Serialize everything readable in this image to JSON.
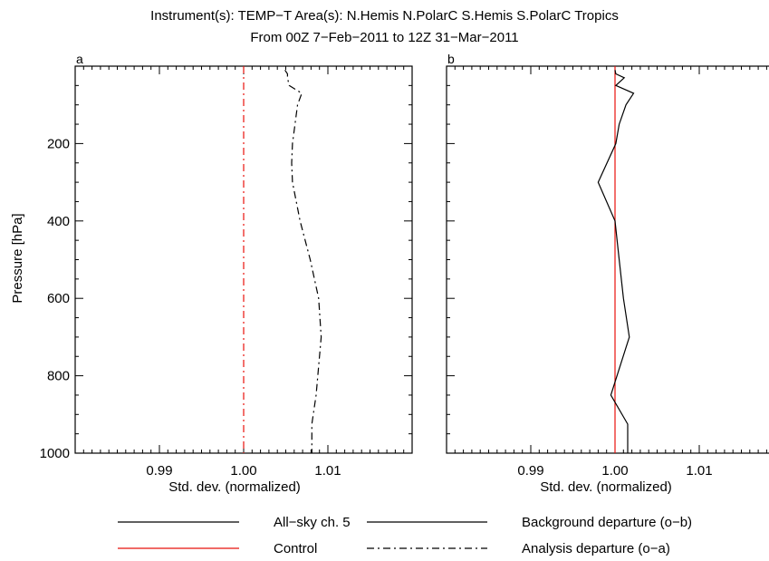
{
  "header": {
    "title_line1": "Instrument(s): TEMP−T     Area(s):  N.Hemis N.PolarC S.Hemis S.PolarC Tropics",
    "title_line2": "From 00Z  7−Feb−2011 to 12Z 31−Mar−2011"
  },
  "colors": {
    "experiment": "#000000",
    "control": "#e8120c",
    "axes": "#000000"
  },
  "chart_data": [
    {
      "type": "line",
      "panel_label": "a",
      "xlabel": "Std. dev. (normalized)",
      "ylabel": "Pressure [hPa]",
      "xlim": [
        0.98,
        1.02
      ],
      "ylim": [
        1000,
        0
      ],
      "y_inverted": true,
      "x_ticks": [
        0.99,
        1.0,
        1.01
      ],
      "x_tick_labels": [
        "0.99",
        "1.00",
        "1.01"
      ],
      "y_ticks": [
        200,
        400,
        600,
        800,
        1000
      ],
      "y_tick_labels": [
        "200",
        "400",
        "600",
        "800",
        "1000"
      ],
      "series": [
        {
          "name": "Control",
          "style": "dash-dot",
          "color": "#e8120c",
          "points": [
            [
              1.0,
              0
            ],
            [
              1.0,
              1000
            ]
          ]
        },
        {
          "name": "All-sky ch. 5 / Analysis departure (o−a)",
          "style": "dash-dot",
          "color": "#000000",
          "points": [
            [
              1.0049,
              10
            ],
            [
              1.0052,
              20
            ],
            [
              1.0052,
              30
            ],
            [
              1.0054,
              50
            ],
            [
              1.0069,
              70
            ],
            [
              1.0064,
              100
            ],
            [
              1.0061,
              150
            ],
            [
              1.0058,
              200
            ],
            [
              1.0057,
              250
            ],
            [
              1.0058,
              300
            ],
            [
              1.0067,
              400
            ],
            [
              1.0079,
              500
            ],
            [
              1.0089,
              600
            ],
            [
              1.0092,
              700
            ],
            [
              1.0086,
              850
            ],
            [
              1.0081,
              925
            ],
            [
              1.0081,
              1000
            ]
          ]
        }
      ]
    },
    {
      "type": "line",
      "panel_label": "b",
      "xlabel": "Std. dev. (normalized)",
      "ylabel": "",
      "xlim": [
        0.98,
        1.02
      ],
      "ylim": [
        1000,
        0
      ],
      "y_inverted": true,
      "x_ticks": [
        0.99,
        1.0,
        1.01
      ],
      "x_tick_labels": [
        "0.99",
        "1.00",
        "1.01"
      ],
      "y_ticks": [
        200,
        400,
        600,
        800,
        1000
      ],
      "y_tick_labels": [],
      "series": [
        {
          "name": "Control",
          "style": "solid",
          "color": "#e8120c",
          "points": [
            [
              1.0,
              0
            ],
            [
              1.0,
              1000
            ]
          ]
        },
        {
          "name": "All-sky ch. 5 / Background departure (o−b)",
          "style": "solid",
          "color": "#000000",
          "points": [
            [
              1.0,
              10
            ],
            [
              1.0001,
              20
            ],
            [
              1.0011,
              30
            ],
            [
              1.0001,
              50
            ],
            [
              1.0022,
              70
            ],
            [
              1.0013,
              100
            ],
            [
              1.0005,
              150
            ],
            [
              1.0001,
              200
            ],
            [
              0.998,
              300
            ],
            [
              1.0,
              400
            ],
            [
              1.0005,
              500
            ],
            [
              1.001,
              600
            ],
            [
              1.0017,
              700
            ],
            [
              0.9995,
              850
            ],
            [
              1.0015,
              925
            ],
            [
              1.0015,
              1000
            ]
          ]
        }
      ]
    }
  ],
  "legend": {
    "placement": "bottom",
    "items": [
      {
        "label": "All−sky ch. 5",
        "color": "#000000",
        "style": "solid"
      },
      {
        "label": "Control",
        "color": "#e8120c",
        "style": "solid"
      },
      {
        "label": "Background departure (o−b)",
        "color": "#000000",
        "style": "solid"
      },
      {
        "label": "Analysis departure (o−a)",
        "color": "#000000",
        "style": "dash-dot"
      }
    ]
  }
}
